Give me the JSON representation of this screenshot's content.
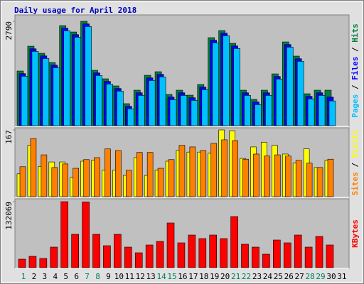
{
  "chart_data": {
    "type": "bar",
    "title": "Daily usage for April 2018",
    "title_color": "#0000c0",
    "categories": [
      "1",
      "2",
      "3",
      "4",
      "5",
      "6",
      "7",
      "8",
      "9",
      "10",
      "11",
      "12",
      "13",
      "14",
      "15",
      "16",
      "17",
      "18",
      "19",
      "20",
      "21",
      "22",
      "23",
      "24",
      "25",
      "26",
      "27",
      "28",
      "29",
      "30",
      "31"
    ],
    "weekend": [
      "1",
      "7",
      "8",
      "14",
      "15",
      "21",
      "22",
      "28",
      "29"
    ],
    "weekend_color": "#00805c",
    "legend_separator": " / ",
    "panels": [
      {
        "ylim": [
          0,
          2790
        ],
        "yticks": [
          2790
        ],
        "series": [
          {
            "name": "Hits",
            "color": "#008040",
            "values": [
              1452,
              2120,
              1929,
              1681,
              2674,
              2502,
              2790,
              1471,
              1242,
              1051,
              573,
              936,
              1337,
              1433,
              821,
              936,
              802,
              1089,
              2350,
              2541,
              2197,
              936,
              688,
              936,
              1375,
              2235,
              1853,
              840,
              936,
              936,
              null
            ]
          },
          {
            "name": "Files",
            "color": "#0000ff",
            "values": [
              1382,
              2050,
              1859,
              1611,
              2604,
              2432,
              2720,
              1401,
              1172,
              981,
              503,
              866,
              1267,
              1363,
              751,
              866,
              732,
              1019,
              2280,
              2471,
              2127,
              866,
              618,
              866,
              1305,
              2165,
              1783,
              770,
              866,
              750,
              null
            ]
          },
          {
            "name": "Pages",
            "color": "#00c0ff",
            "values": [
              1312,
              1980,
              1789,
              1541,
              2534,
              2362,
              2650,
              1331,
              1102,
              911,
              433,
              796,
              1197,
              1293,
              681,
              796,
              662,
              949,
              2210,
              2401,
              2057,
              796,
              548,
              796,
              1235,
              2095,
              1713,
              700,
              796,
              646,
              null
            ]
          }
        ]
      },
      {
        "ylim": [
          0,
          167
        ],
        "yticks": [
          167
        ],
        "series": [
          {
            "name": "Visits",
            "color": "#ffff00",
            "values": [
              56,
              128,
              75,
              86,
              86,
              47,
              88,
              90,
              65,
              65,
              52,
              97,
              52,
              65,
              88,
              115,
              111,
              111,
              108,
              167,
              165,
              95,
              124,
              136,
              128,
              106,
              83,
              119,
              72,
              90,
              null
            ]
          },
          {
            "name": "Sites",
            "color": "#ff8000",
            "values": [
              74,
              145,
              104,
              72,
              81,
              70,
              92,
              97,
              119,
              115,
              65,
              110,
              110,
              70,
              92,
              128,
              124,
              115,
              133,
              142,
              140,
              93,
              106,
              101,
              104,
              101,
              90,
              83,
              72,
              93,
              null
            ]
          }
        ]
      },
      {
        "ylim": [
          0,
          132069
        ],
        "yticks": [
          132069
        ],
        "series": [
          {
            "name": "KBytes",
            "color": "#ff0000",
            "values": [
              15791,
              21533,
              17226,
              40194,
              132069,
              66033,
              131500,
              66033,
              43065,
              66033,
              40194,
              28710,
              44501,
              51678,
              89001,
              48807,
              64598,
              57420,
              64598,
              57420,
              101921,
              45936,
              40194,
              25839,
              54549,
              48807,
              64598,
              40194,
              61727,
              44501,
              null
            ]
          }
        ]
      }
    ]
  }
}
